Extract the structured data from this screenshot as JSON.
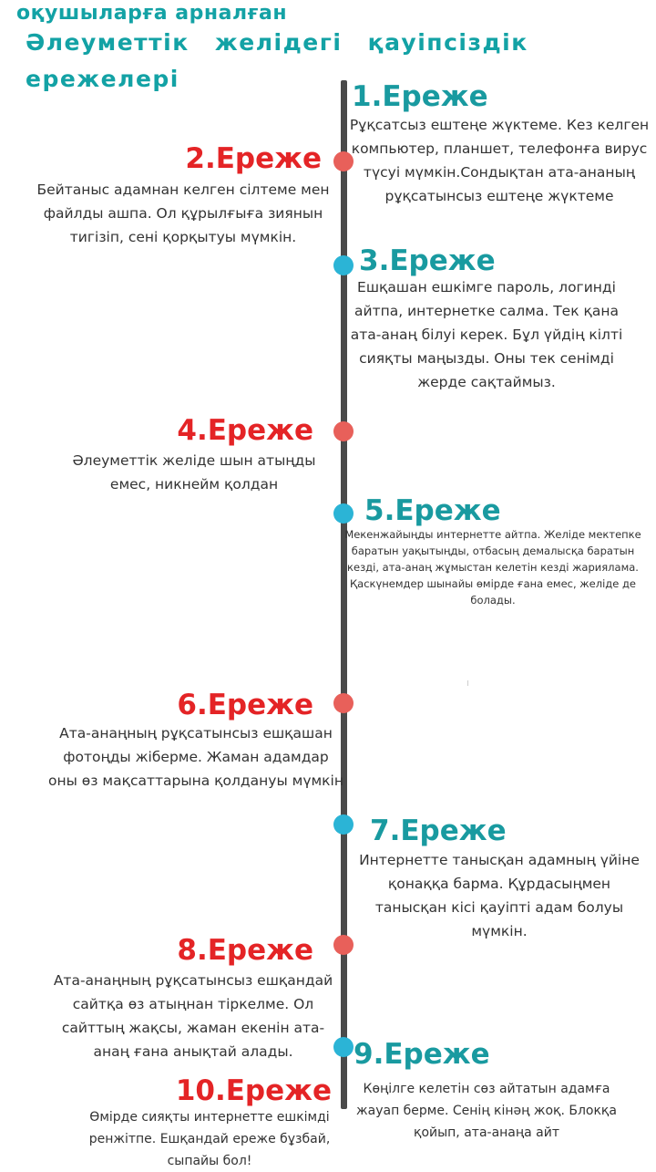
{
  "header": {
    "line1": "оқушыларға арналған",
    "line2": "Әлеуметтік желідегі қауіпсіздік",
    "line3": "ережелері"
  },
  "rules": [
    {
      "title": "1.Ереже",
      "text": "Рұқсатсыз ештеңе жүктеме. Кез келген компьютер, планшет, телефонға вирус түсуі мүмкін.Сондықтан ата-ананың рұқсатынсыз ештеңе жүктеме"
    },
    {
      "title": "2.Ереже",
      "text": "Бейтаныс адамнан келген сілтеме мен файлды ашпа. Ол құрылғыға зиянын тигізіп, сені қорқытуы мүмкін."
    },
    {
      "title": "3.Ереже",
      "text": "Ешқашан ешкімге пароль, логинді айтпа, интернетке салма. Тек қана ата-анаң білуі керек. Бұл үйдің кілті сияқты маңызды. Оны тек сенімді жерде сақтаймыз."
    },
    {
      "title": "4.Ереже",
      "text": "Әлеуметтік желіде шын атыңды емес, никнейм қолдан"
    },
    {
      "title": "5.Ереже",
      "text": "Мекенжайыңды интернетте айтпа. Желіде мектепке баратын уақытыңды, отбасың демалысқа баратын кезді, ата-анаң жұмыстан келетін кезді жариялама. Қаскүнемдер шынайы өмірде ғана емес, желіде де болады."
    },
    {
      "title": "6.Ереже",
      "text": "Ата-анаңның рұқсатынсыз ешқашан фотоңды жіберме. Жаман адамдар оны өз мақсаттарына қолдануы мүмкін"
    },
    {
      "title": "7.Ереже",
      "text": "Интернетте танысқан адамның үйіне қонаққа барма. Құрдасыңмен танысқан кісі қауіпті адам болуы мүмкін."
    },
    {
      "title": "8.Ереже",
      "text": "Ата-анаңның рұқсатынсыз ешқандай сайтқа өз атыңнан тіркелме. Ол сайттың жақсы, жаман екенін ата-анаң ғана анықтай алады."
    },
    {
      "title": "9.Ереже",
      "text": "Көңілге келетін сөз айтатын адамға жауап берме. Сенің кінәң жоқ. Блокқа қойып, ата-анаңа айт"
    },
    {
      "title": "10.Ереже",
      "text": "Өмірде сияқты интернетте ешкімді ренжітпе. Ешқандай ереже бұзбай, сыпайы бол!"
    }
  ],
  "colors": {
    "header": "#13a2a5",
    "left_title": "#e42426",
    "right_title": "#199aa0",
    "left_dot": "#e8605a",
    "right_dot": "#2bb4d6",
    "axis": "#4a4a4a"
  }
}
